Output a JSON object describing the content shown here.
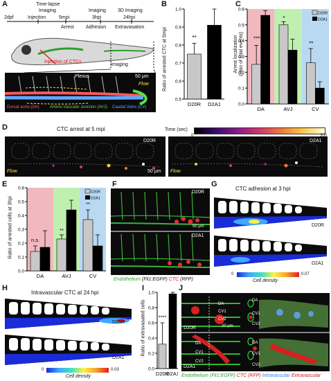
{
  "panels": {
    "A": {
      "letter": "A",
      "timeline": {
        "labels_top": [
          "Time-lapse",
          "Imaging",
          "Imaging",
          "3D Imaging"
        ],
        "times": [
          "2dpf",
          "Injection",
          "5mpi",
          "3hpi",
          "24hpi"
        ],
        "phases": [
          "Arrest",
          "Adhesion",
          "Extravasation"
        ],
        "injection": "Injection of CTCs",
        "imaging": "Imaging"
      },
      "micro": {
        "title": "Plexus",
        "scale": "50 μm",
        "flow": "Flow",
        "legend": [
          {
            "text": "Dorsal aorta (DA)",
            "color": "#ff5a5a"
          },
          {
            "text": "Arterio-Vascular Junction (AVJ)",
            "color": "#55e04f"
          },
          {
            "text": "Caudal Veins (CV)",
            "color": "#5fa8ff"
          }
        ]
      }
    },
    "B": {
      "letter": "B",
      "ylabel": "Ratio of arrested CTC at 5mpi",
      "sig": "**"
    },
    "C": {
      "letter": "C",
      "ylabel": "Arrest localization\n(ratio of total events)",
      "legend": [
        "D20R",
        "D2A1"
      ],
      "sig": [
        "***",
        "*",
        "**"
      ]
    },
    "D": {
      "letter": "D",
      "title": "CTC arrest at 5 mpi",
      "time_label": "Time (sec)",
      "time_min": "0",
      "time_max": "300",
      "left_tag": "D20R",
      "right_tag": "D2A1",
      "flow": "Flow",
      "scale": "50 μm"
    },
    "E": {
      "letter": "E",
      "ylabel": "Ratio of arrested cells at 3hpi",
      "legend": [
        "D20R",
        "D2A1"
      ],
      "sig": [
        "n.s.",
        "**",
        "**"
      ]
    },
    "F": {
      "letter": "F",
      "tag_top": "D20R",
      "tag_bottom": "D2A1",
      "scale": "50 μm",
      "caption_a": "Endothelium",
      "caption_b": "(Fli1:EGFP)",
      "caption_c": "CTC",
      "caption_d": "(RFP)"
    },
    "G": {
      "letter": "G",
      "title": "CTC adhesion at 3 hpi",
      "tag_top": "D20R",
      "tag_bottom": "D2A1",
      "cb_min": "0",
      "cb_max": "0.07",
      "cb_label": "Cell density"
    },
    "H": {
      "letter": "H",
      "title": "Intravascular CTC at 24 hpi",
      "tag_top": "D20R",
      "tag_bottom": "D2A1",
      "cb_min": "0",
      "cb_max": "0.03",
      "cb_label": "Cell density"
    },
    "I": {
      "letter": "I",
      "ylabel": "Ratio of extravasated cells",
      "sig": "****"
    },
    "J": {
      "letter": "J",
      "labels": [
        "DA",
        "CV1",
        "CV2"
      ],
      "tag_top": "D20R",
      "tag_bottom": "D2A1",
      "scale": "20 μm",
      "caption": [
        {
          "text": "Endothelium (Fli1:EGFP)",
          "color": "#2e9e2e"
        },
        {
          "text": "CTC (RFP)",
          "color": "#d01818"
        },
        {
          "text": "Intravascular",
          "color": "#3b7bd8"
        },
        {
          "text": "Extravascular",
          "color": "#d01818"
        }
      ]
    }
  },
  "chart_data": [
    {
      "panel": "B",
      "type": "bar",
      "categories": [
        "D20R",
        "D2A1"
      ],
      "values": [
        0.75,
        0.91
      ],
      "errors": [
        0.06,
        0.11
      ],
      "ylim": [
        0.5,
        1.0
      ],
      "yticks": [
        "0.5",
        "0.6",
        "0.7",
        "0.8",
        "0.9",
        "1.0"
      ],
      "colors": [
        "#c8c8c8",
        "#000000"
      ]
    },
    {
      "panel": "C",
      "type": "bar",
      "categories": [
        "DA",
        "AVJ",
        "CV"
      ],
      "series": [
        {
          "name": "D20R",
          "values": [
            0.25,
            0.5,
            0.26
          ],
          "errors": [
            0.12,
            0.02,
            0.09
          ],
          "color": "#c8c8c8"
        },
        {
          "name": "D2A1",
          "values": [
            0.56,
            0.34,
            0.1
          ],
          "errors": [
            0.03,
            0.07,
            0.04
          ],
          "color": "#000000"
        }
      ],
      "ylim": [
        0.0,
        0.6
      ],
      "yticks": [
        "0.0",
        "0.1",
        "0.2",
        "0.3",
        "0.4",
        "0.5",
        "0.6"
      ],
      "bands": [
        "#f2b8c0",
        "#bff0b0",
        "#b9d9f2"
      ]
    },
    {
      "panel": "E",
      "type": "bar",
      "categories": [
        "DA",
        "AVJ",
        "CV"
      ],
      "series": [
        {
          "name": "D20R",
          "values": [
            0.14,
            0.23,
            0.37
          ],
          "errors": [
            0.04,
            0.03,
            0.07
          ],
          "color": "#c8c8c8"
        },
        {
          "name": "D2A1",
          "values": [
            0.17,
            0.44,
            0.18
          ],
          "errors": [
            0.12,
            0.07,
            0.08
          ],
          "color": "#000000"
        }
      ],
      "ylim": [
        0.0,
        0.6
      ],
      "yticks": [
        "0.0",
        "0.1",
        "0.2",
        "0.3",
        "0.4",
        "0.5",
        "0.6"
      ],
      "bands": [
        "#f2b8c0",
        "#bff0b0",
        "#b9d9f2"
      ]
    },
    {
      "panel": "I",
      "type": "bar",
      "categories": [
        "D20R",
        "D2A1"
      ],
      "values": [
        0.32,
        0.98
      ],
      "errors": [
        0.28,
        0.04
      ],
      "ylim": [
        0.0,
        1.0
      ],
      "yticks": [
        "0.0",
        "0.2",
        "0.4",
        "0.6",
        "0.8",
        "1.0"
      ],
      "colors": [
        "#c8c8c8",
        "#000000"
      ]
    }
  ]
}
